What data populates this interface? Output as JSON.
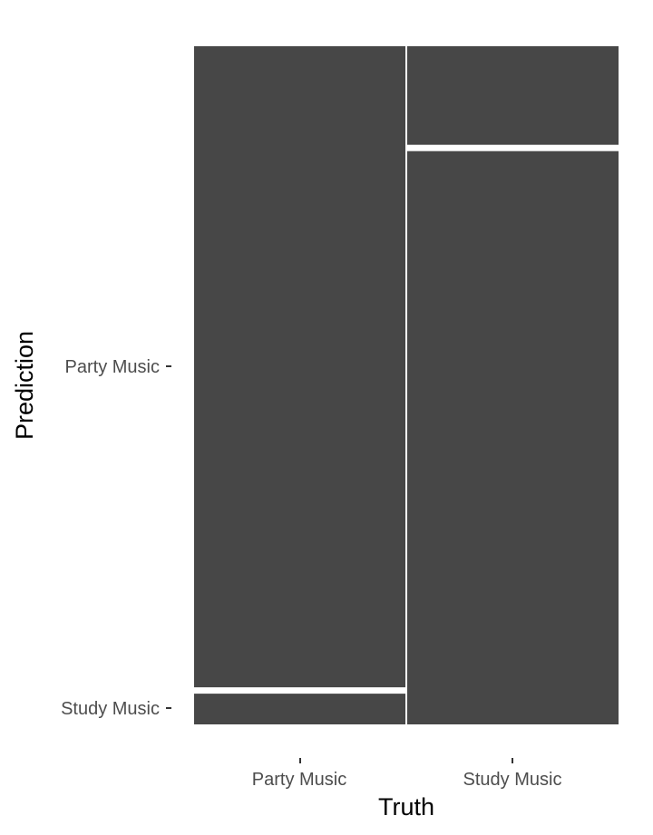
{
  "chart_data": {
    "type": "mosaic",
    "title": "",
    "xlabel": "Truth",
    "ylabel": "Prediction",
    "x_categories": [
      "Party Music",
      "Study Music"
    ],
    "y_categories": [
      "Party Music",
      "Study Music"
    ],
    "tick_labels": {
      "x": [
        "Party Music",
        "Study Music"
      ],
      "y": [
        "Party Music",
        "Study Music"
      ]
    },
    "column_share": [
      0.5,
      0.5
    ],
    "cells": [
      {
        "truth": "Party Music",
        "prediction": "Party Music",
        "share_of_column": 0.95
      },
      {
        "truth": "Party Music",
        "prediction": "Study Music",
        "share_of_column": 0.05
      },
      {
        "truth": "Study Music",
        "prediction": "Party Music",
        "share_of_column": 0.15
      },
      {
        "truth": "Study Music",
        "prediction": "Study Music",
        "share_of_column": 0.85
      }
    ],
    "fill_color": "#474747",
    "background": "#ffffff",
    "grid": false
  }
}
